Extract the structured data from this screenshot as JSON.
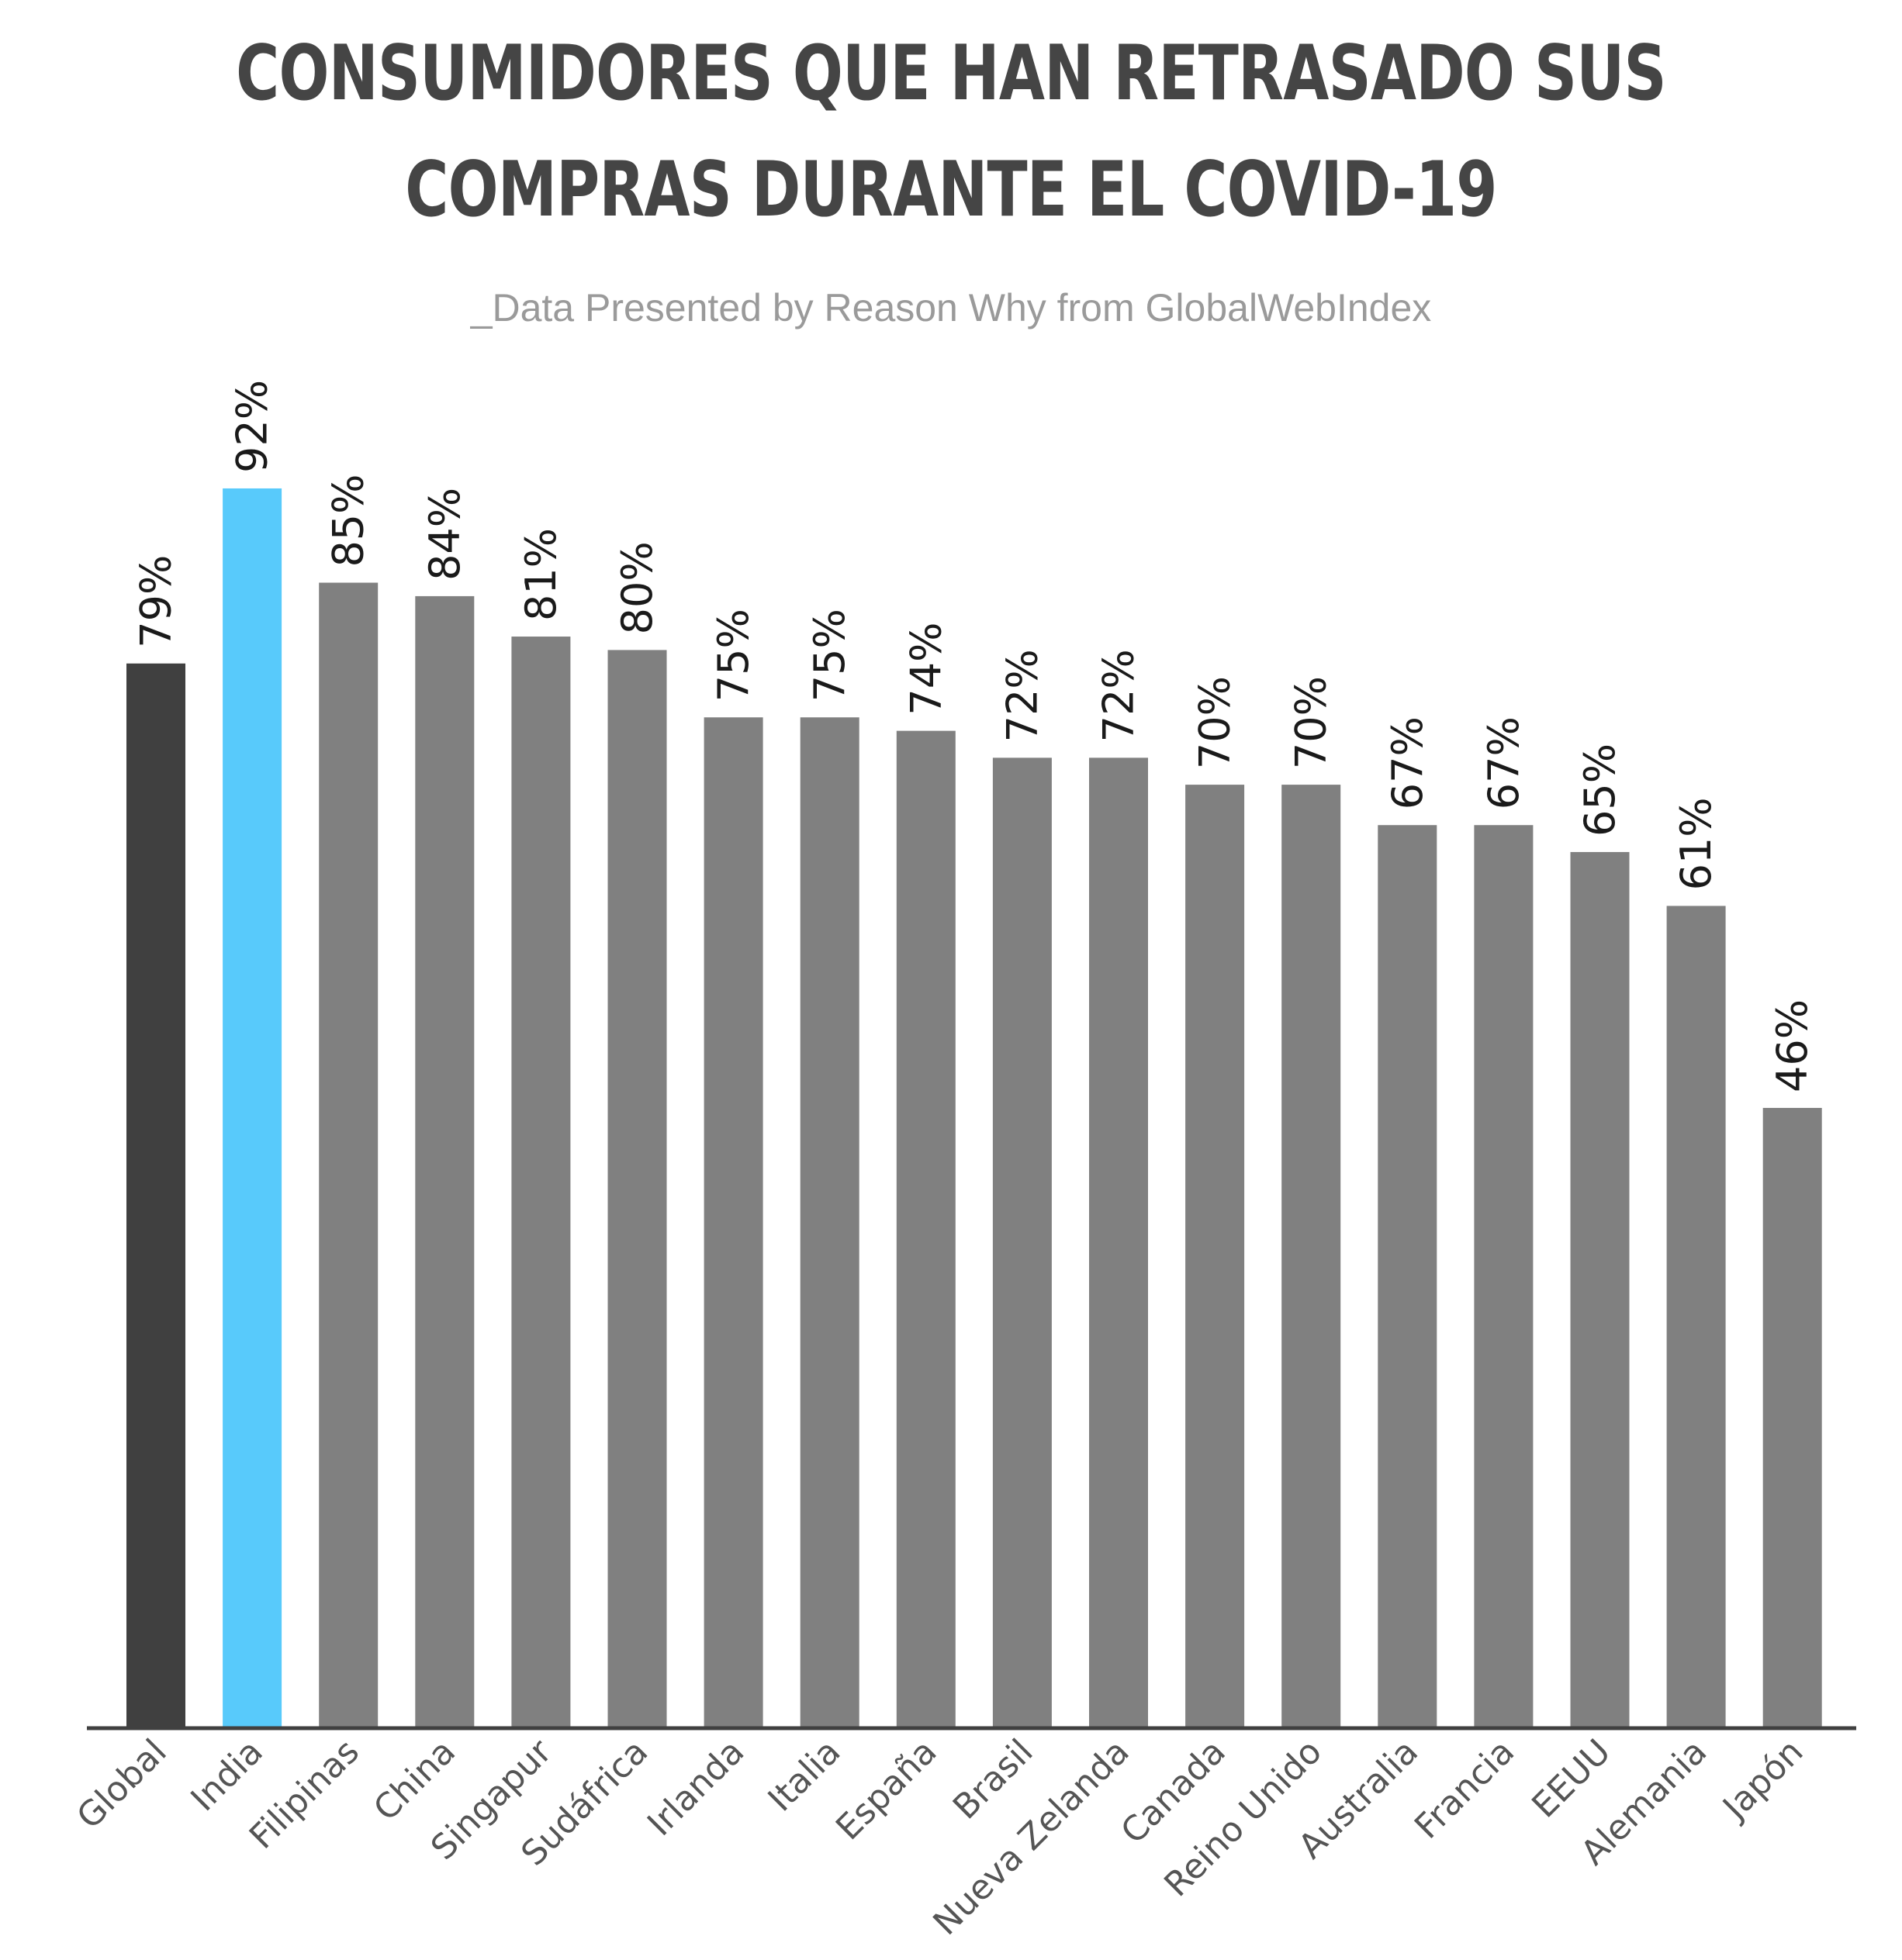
{
  "chart": {
    "title_line1": "CONSUMIDORES QUE HAN RETRASADO SUS",
    "title_line2": "COMPRAS DURANTE EL COVID-19",
    "subtitle": "_Data Presented by Reason Why from GlobalWebIndex"
  },
  "chart_data": {
    "type": "bar",
    "title": "CONSUMIDORES QUE HAN RETRASADO SUS COMPRAS DURANTE EL COVID-19",
    "subtitle": "_Data Presented by Reason Why from GlobalWebIndex",
    "xlabel": "",
    "ylabel": "",
    "ylim": [
      0,
      100
    ],
    "grid": false,
    "categories": [
      "Global",
      "India",
      "Filipinas",
      "China",
      "Singapur",
      "Sudáfrica",
      "Irlanda",
      "Italia",
      "España",
      "Brasil",
      "Nueva Zelanda",
      "Canada",
      "Reino Unido",
      "Australia",
      "Francia",
      "EEUU",
      "Alemania",
      "Japón"
    ],
    "values": [
      79,
      92,
      85,
      84,
      81,
      80,
      75,
      75,
      74,
      72,
      72,
      70,
      70,
      67,
      67,
      65,
      61,
      46
    ],
    "value_labels": [
      "79%",
      "92%",
      "85%",
      "84%",
      "81%",
      "80%",
      "75%",
      "75%",
      "74%",
      "72%",
      "72%",
      "70%",
      "70%",
      "67%",
      "67%",
      "65%",
      "61%",
      "46%"
    ],
    "bar_colors": [
      "#404040",
      "#58cafb",
      "#808080",
      "#808080",
      "#808080",
      "#808080",
      "#808080",
      "#808080",
      "#808080",
      "#808080",
      "#808080",
      "#808080",
      "#808080",
      "#808080",
      "#808080",
      "#808080",
      "#808080",
      "#808080"
    ],
    "axis_color": "#404040"
  }
}
